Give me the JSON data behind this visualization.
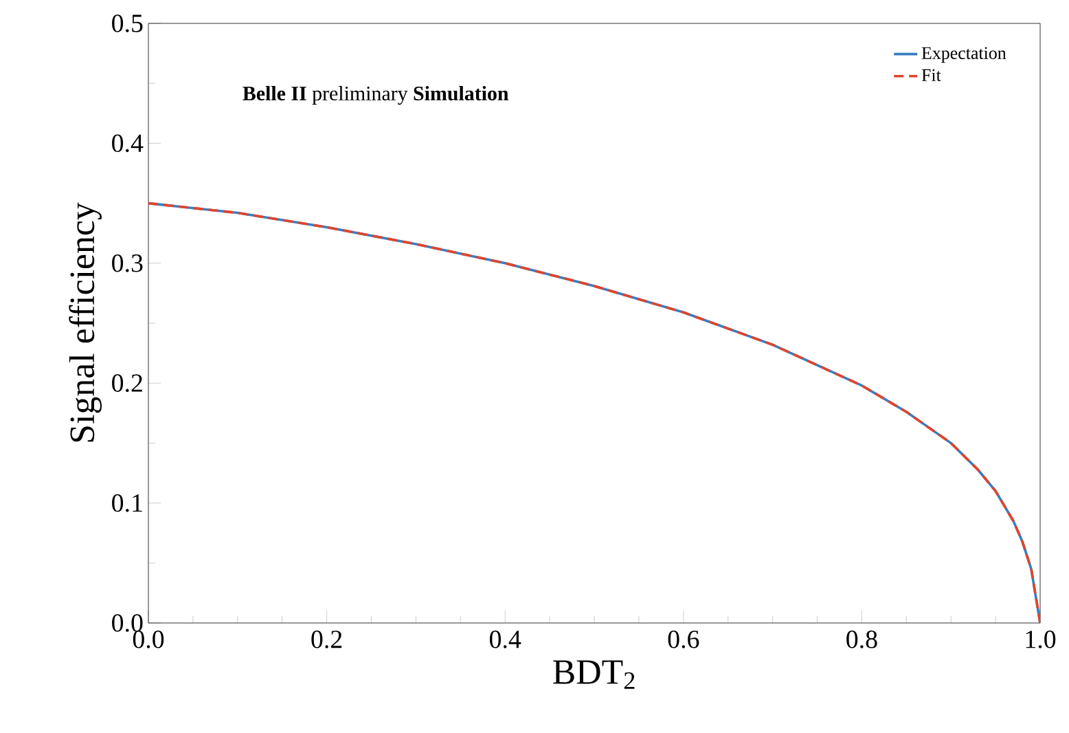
{
  "chart_data": {
    "type": "line",
    "xlabel": "BDT$_{2}$",
    "ylabel": "Signal efficiency",
    "annotations": [
      "**Belle II** preliminary **Simulation**"
    ],
    "x": [
      0,
      0.1,
      0.2,
      0.3,
      0.4,
      0.5,
      0.6,
      0.7,
      0.8,
      0.85,
      0.9,
      0.93,
      0.95,
      0.97,
      0.98,
      0.99,
      1.0
    ],
    "series": [
      {
        "name": "Expectation",
        "color": "#3a7dc0",
        "line_style": "solid",
        "values": [
          0.35,
          0.342,
          0.33,
          0.316,
          0.3,
          0.281,
          0.259,
          0.232,
          0.198,
          0.176,
          0.15,
          0.128,
          0.11,
          0.085,
          0.068,
          0.045,
          0.0
        ]
      },
      {
        "name": "Fit",
        "color": "#e0452c",
        "line_style": "dashed",
        "values": [
          0.35,
          0.342,
          0.33,
          0.316,
          0.3,
          0.281,
          0.259,
          0.232,
          0.198,
          0.176,
          0.15,
          0.128,
          0.11,
          0.085,
          0.068,
          0.045,
          0.0
        ]
      }
    ],
    "xlim": [
      0,
      1
    ],
    "ylim": [
      0,
      0.5
    ],
    "xticks": [
      {
        "value": 0,
        "label": "0.0"
      },
      {
        "value": 0.2,
        "label": "0.2"
      },
      {
        "value": 0.4,
        "label": "0.4"
      },
      {
        "value": 0.6,
        "label": "0.6"
      },
      {
        "value": 0.8,
        "label": "0.8"
      },
      {
        "value": 1,
        "label": "1.0"
      }
    ],
    "yticks": [
      {
        "value": 0,
        "label": "0.0"
      },
      {
        "value": 0.1,
        "label": "0.1"
      },
      {
        "value": 0.2,
        "label": "0.2"
      },
      {
        "value": 0.3,
        "label": "0.3"
      },
      {
        "value": 0.4,
        "label": "0.4"
      },
      {
        "value": 0.5,
        "label": "0.5"
      }
    ],
    "legend": "top right"
  }
}
